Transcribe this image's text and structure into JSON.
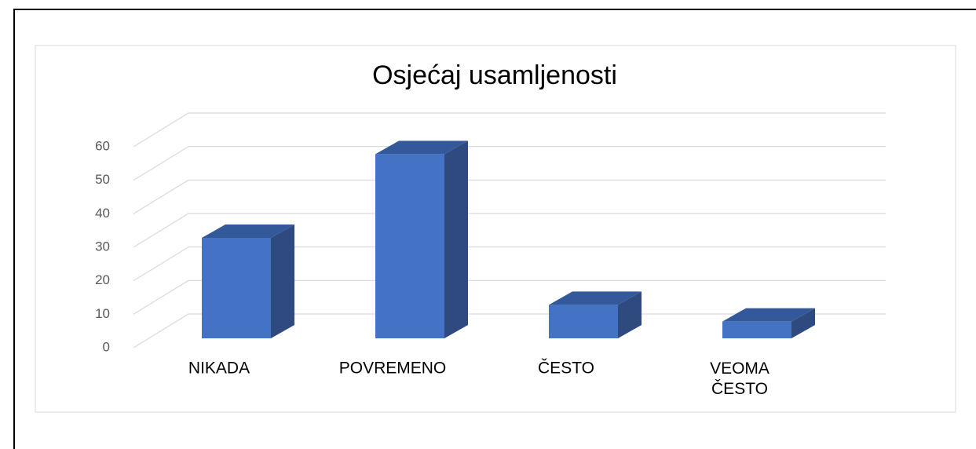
{
  "chart_data": {
    "type": "bar3d",
    "title": "Osjećaj usamljenosti",
    "categories": [
      "NIKADA",
      "POVREMENO",
      "ČESTO",
      "VEOMA ČESTO"
    ],
    "values": [
      30,
      55,
      10,
      5
    ],
    "color": "#4472c4",
    "ylim": [
      0,
      60
    ],
    "yticks": [
      0,
      10,
      20,
      30,
      40,
      50,
      60
    ],
    "grid": true
  }
}
